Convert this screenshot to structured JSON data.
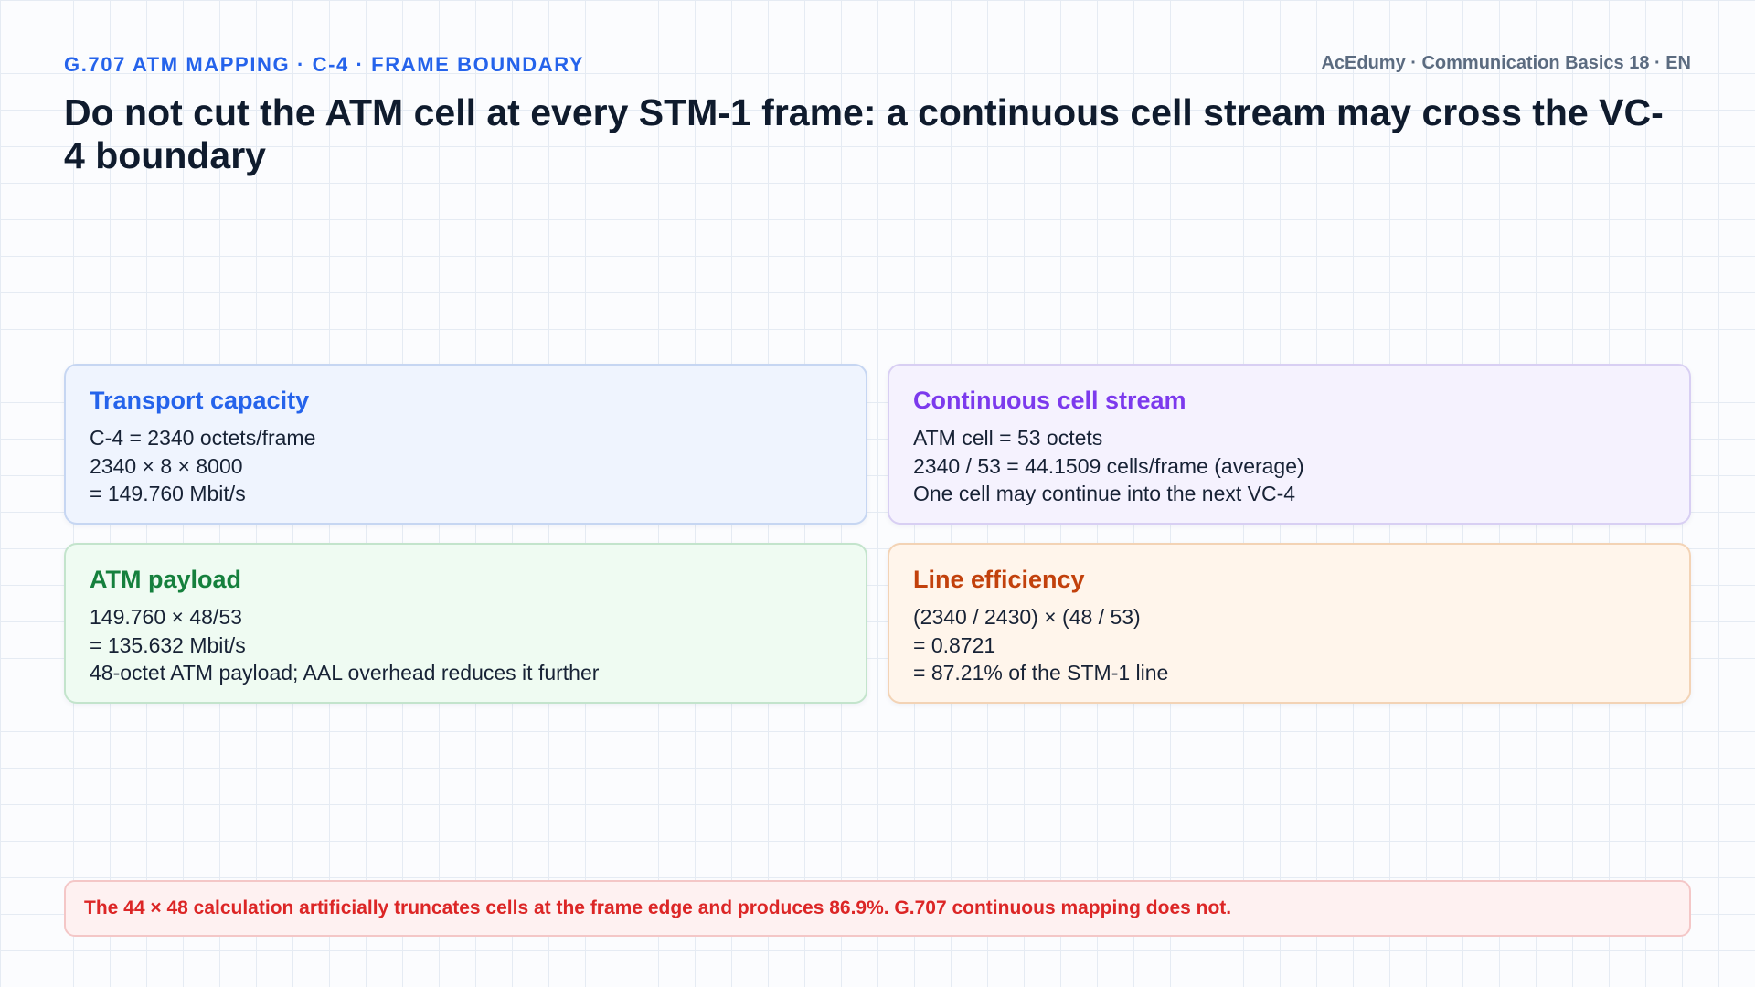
{
  "header": {
    "kicker": "G.707 ATM MAPPING · C-4 · FRAME BOUNDARY",
    "brand": "AcEdumy · Communication Basics 18 · EN",
    "title": "Do not cut the ATM cell at every STM-1 frame: a continuous cell stream may cross the VC-4 boundary"
  },
  "cards": [
    {
      "title": "Transport capacity",
      "lines": [
        "C-4 = 2340 octets/frame",
        "2340 × 8 × 8000",
        "= 149.760 Mbit/s"
      ],
      "accent": "#2563eb"
    },
    {
      "title": "Continuous cell stream",
      "lines": [
        "ATM cell = 53 octets",
        "2340 / 53 = 44.1509 cells/frame (average)",
        "One cell may continue into the next VC-4"
      ],
      "accent": "#7c3aed"
    },
    {
      "title": "ATM payload",
      "lines": [
        "149.760 × 48/53",
        "= 135.632 Mbit/s",
        "48-octet ATM payload; AAL overhead reduces it further"
      ],
      "accent": "#15803d"
    },
    {
      "title": "Line efficiency",
      "lines": [
        "(2340 / 2430) × (48 / 53)",
        "= 0.8721",
        "= 87.21% of the STM-1 line"
      ],
      "accent": "#c2410c"
    }
  ],
  "note": {
    "text": "The 44 × 48 calculation artificially truncates cells at the frame edge and produces 86.9%. G.707 continuous mapping does not."
  }
}
